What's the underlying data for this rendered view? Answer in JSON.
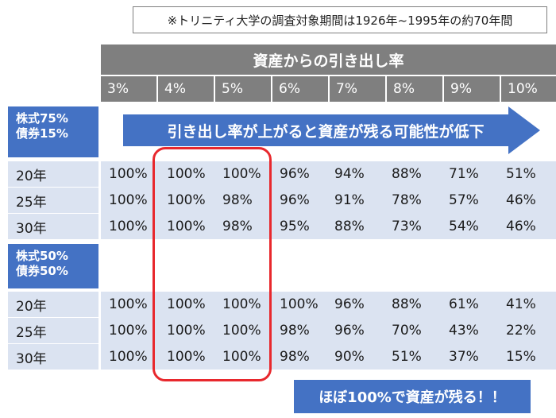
{
  "note": "※トリニティ大学の調査対象期間は1926年~1995年の約70年間",
  "header": "資産からの引き出し率",
  "rates": [
    "3%",
    "4%",
    "5%",
    "6%",
    "7%",
    "8%",
    "9%",
    "10%"
  ],
  "arrow_text": "引き出し率が上がると資産が残る可能性が低下",
  "callout": "ほぼ100%で資産が残る！！",
  "colors": {
    "blue": "#4472c4",
    "gray": "#7f7f7f",
    "band": "#dbe3f1",
    "highlight": "#e8282d"
  },
  "groups": [
    {
      "label_line1": "株式75%",
      "label_line2": "債券15%",
      "rows": [
        {
          "year": "20年",
          "values": [
            "100%",
            "100%",
            "100%",
            "96%",
            "94%",
            "88%",
            "71%",
            "51%"
          ]
        },
        {
          "year": "25年",
          "values": [
            "100%",
            "100%",
            "98%",
            "96%",
            "91%",
            "78%",
            "57%",
            "46%"
          ]
        },
        {
          "year": "30年",
          "values": [
            "100%",
            "100%",
            "98%",
            "95%",
            "88%",
            "73%",
            "54%",
            "46%"
          ]
        }
      ]
    },
    {
      "label_line1": "株式50%",
      "label_line2": "債券50%",
      "rows": [
        {
          "year": "20年",
          "values": [
            "100%",
            "100%",
            "100%",
            "100%",
            "96%",
            "88%",
            "61%",
            "41%"
          ]
        },
        {
          "year": "25年",
          "values": [
            "100%",
            "100%",
            "100%",
            "98%",
            "96%",
            "70%",
            "43%",
            "22%"
          ]
        },
        {
          "year": "30年",
          "values": [
            "100%",
            "100%",
            "100%",
            "98%",
            "90%",
            "51%",
            "37%",
            "15%"
          ]
        }
      ]
    }
  ]
}
